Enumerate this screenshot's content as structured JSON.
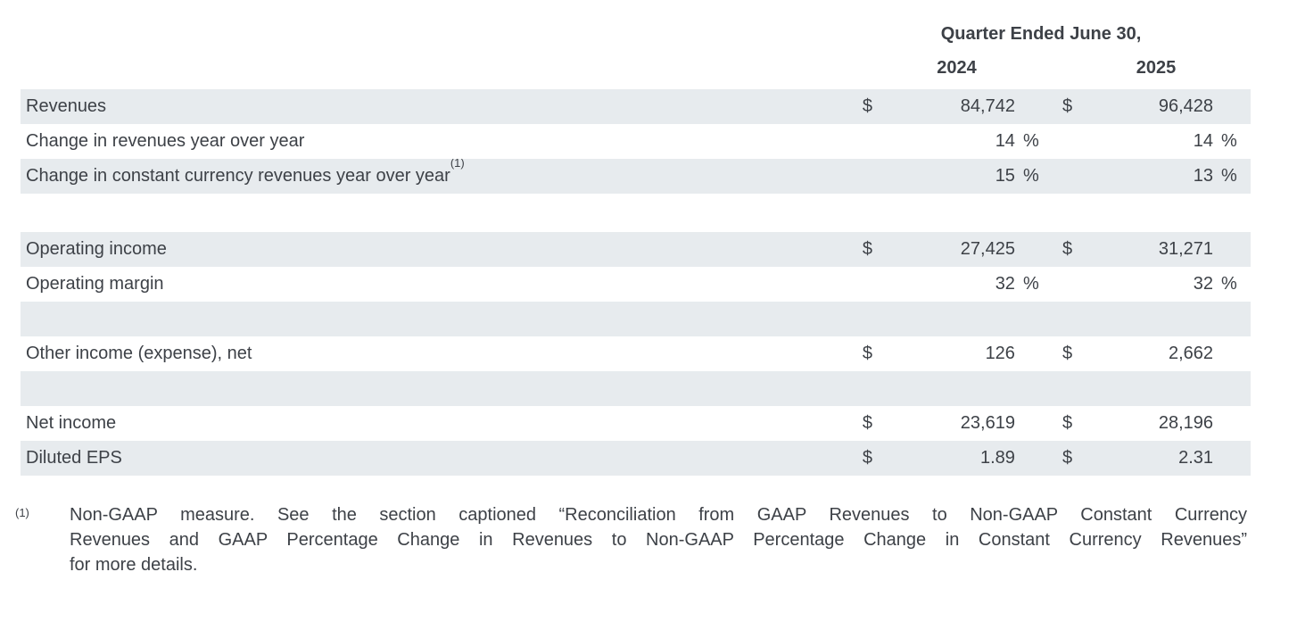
{
  "header": {
    "quarter_label": "Quarter Ended June 30,",
    "years": [
      "2024",
      "2025"
    ]
  },
  "table": {
    "rows": [
      {
        "label": "Revenues",
        "cells": [
          {
            "sym": "$",
            "val": "84,742",
            "suf": ""
          },
          {
            "sym": "$",
            "val": "96,428",
            "suf": ""
          }
        ]
      },
      {
        "label": "Change in revenues year over year",
        "cells": [
          {
            "sym": "",
            "val": "14",
            "suf": "%"
          },
          {
            "sym": "",
            "val": "14",
            "suf": "%"
          }
        ]
      },
      {
        "label": "Change in constant currency revenues year over year",
        "sup": "(1)",
        "cells": [
          {
            "sym": "",
            "val": "15",
            "suf": "%"
          },
          {
            "sym": "",
            "val": "13",
            "suf": "%"
          }
        ]
      },
      {
        "type": "spacer"
      },
      {
        "label": "Operating income",
        "cells": [
          {
            "sym": "$",
            "val": "27,425",
            "suf": ""
          },
          {
            "sym": "$",
            "val": "31,271",
            "suf": ""
          }
        ]
      },
      {
        "label": "Operating margin",
        "cells": [
          {
            "sym": "",
            "val": "32",
            "suf": "%"
          },
          {
            "sym": "",
            "val": "32",
            "suf": "%"
          }
        ]
      },
      {
        "type": "empty"
      },
      {
        "label": "Other income (expense), net",
        "cells": [
          {
            "sym": "$",
            "val": "126",
            "suf": ""
          },
          {
            "sym": "$",
            "val": "2,662",
            "suf": ""
          }
        ]
      },
      {
        "type": "empty"
      },
      {
        "label": "Net income",
        "cells": [
          {
            "sym": "$",
            "val": "23,619",
            "suf": ""
          },
          {
            "sym": "$",
            "val": "28,196",
            "suf": ""
          }
        ]
      },
      {
        "label": "Diluted EPS",
        "cells": [
          {
            "sym": "$",
            "val": "1.89",
            "suf": ""
          },
          {
            "sym": "$",
            "val": "2.31",
            "suf": ""
          }
        ]
      }
    ]
  },
  "footnote": {
    "marker": "(1)",
    "lines": [
      "Non-GAAP measure. See the section captioned “Reconciliation from GAAP Revenues to Non-GAAP Constant Currency",
      "Revenues and GAAP Percentage Change in Revenues to Non-GAAP Percentage Change in Constant Currency Revenues”",
      "for more details."
    ]
  },
  "colors": {
    "row_shade": "#e7ebee",
    "text": "#3d4147"
  }
}
